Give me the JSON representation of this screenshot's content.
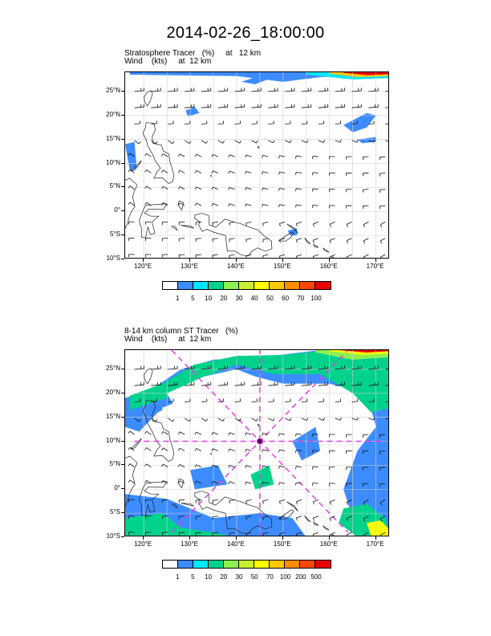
{
  "title": "2014-02-26_18:00:00",
  "panels": [
    {
      "subtitle_line1": "Stratosphere Tracer   (%)     at   12 km",
      "subtitle_line2": "Wind    (kts)     at  12 km",
      "lat_labels": [
        "25°N",
        "20°N",
        "15°N",
        "10°N",
        "5°N",
        "0°",
        "5°S",
        "10°S"
      ],
      "lon_labels": [
        "120°E",
        "130°E",
        "140°E",
        "150°E",
        "160°E",
        "170°E"
      ],
      "colorbar": {
        "labels": [
          "1",
          "5",
          "10",
          "20",
          "30",
          "40",
          "50",
          "60",
          "70",
          "100"
        ],
        "colors": [
          "#ffffff",
          "#3c8cff",
          "#00e6ff",
          "#00d28c",
          "#8cf050",
          "#c8f032",
          "#ffff00",
          "#ffc800",
          "#ff8c00",
          "#ff4600",
          "#e60000"
        ]
      }
    },
    {
      "subtitle_line1": "8-14 km column ST Tracer   (%)",
      "subtitle_line2": "Wind    (kts)     at  12 km",
      "lat_labels": [
        "25°N",
        "20°N",
        "15°N",
        "10°N",
        "5°N",
        "0°",
        "5°S",
        "10°S"
      ],
      "lon_labels": [
        "120°E",
        "130°E",
        "140°E",
        "150°E",
        "160°E",
        "170°E"
      ],
      "colorbar": {
        "labels": [
          "1",
          "5",
          "10",
          "20",
          "30",
          "50",
          "70",
          "100",
          "200",
          "500"
        ],
        "colors": [
          "#ffffff",
          "#3c8cff",
          "#00e6ff",
          "#00d28c",
          "#8cf050",
          "#c8f032",
          "#ffff00",
          "#ffc800",
          "#ff8c00",
          "#ff4600",
          "#e60000"
        ]
      }
    }
  ],
  "map": {
    "lon_range": [
      116,
      173
    ],
    "lat_range": [
      -10,
      29
    ],
    "projection": "cylindrical",
    "gridlines": true,
    "cross_center": {
      "lon": 145,
      "lat": 10
    },
    "cross_color": "#e040e0"
  }
}
